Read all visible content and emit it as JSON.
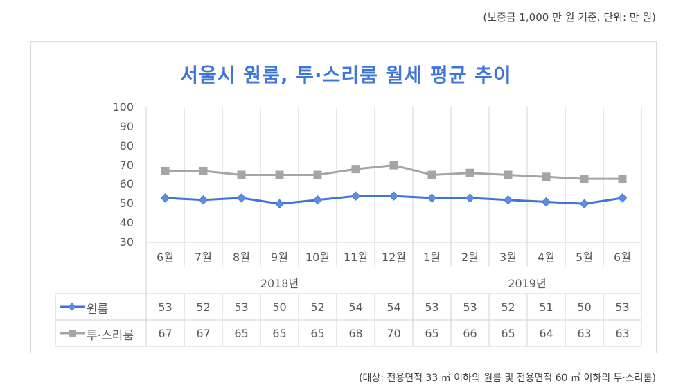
{
  "header": {
    "unit_note": "(보증금 1,000 만 원 기준, 단위: 만 원)"
  },
  "footer": {
    "note": "(대상: 전용면적 33 ㎡ 이하의 원룸 및 전용면적 60 ㎡ 이하의 투·스리룸)"
  },
  "chart_data": {
    "type": "line",
    "title": "서울시 원룸, 투·스리룸 월세 평균 추이",
    "xlabel": "",
    "ylabel": "",
    "ylim": [
      30,
      100
    ],
    "yticks": [
      100,
      90,
      80,
      70,
      60,
      50,
      40,
      30
    ],
    "grid": "vertical",
    "legend_position": "data-table",
    "categories": [
      "6월",
      "7월",
      "8월",
      "9월",
      "10월",
      "11월",
      "12월",
      "1월",
      "2월",
      "3월",
      "4월",
      "5월",
      "6월"
    ],
    "year_groups": [
      {
        "label": "2018년",
        "span": 7
      },
      {
        "label": "2019년",
        "span": 6
      }
    ],
    "series": [
      {
        "name": "원룸",
        "color": "#3f74d9",
        "marker": "diamond",
        "values": [
          53,
          52,
          53,
          50,
          52,
          54,
          54,
          53,
          53,
          52,
          51,
          50,
          53
        ]
      },
      {
        "name": "투·스리룸",
        "color": "#a5a5a5",
        "marker": "square",
        "values": [
          67,
          67,
          65,
          65,
          65,
          68,
          70,
          65,
          66,
          65,
          64,
          63,
          63
        ]
      }
    ]
  }
}
